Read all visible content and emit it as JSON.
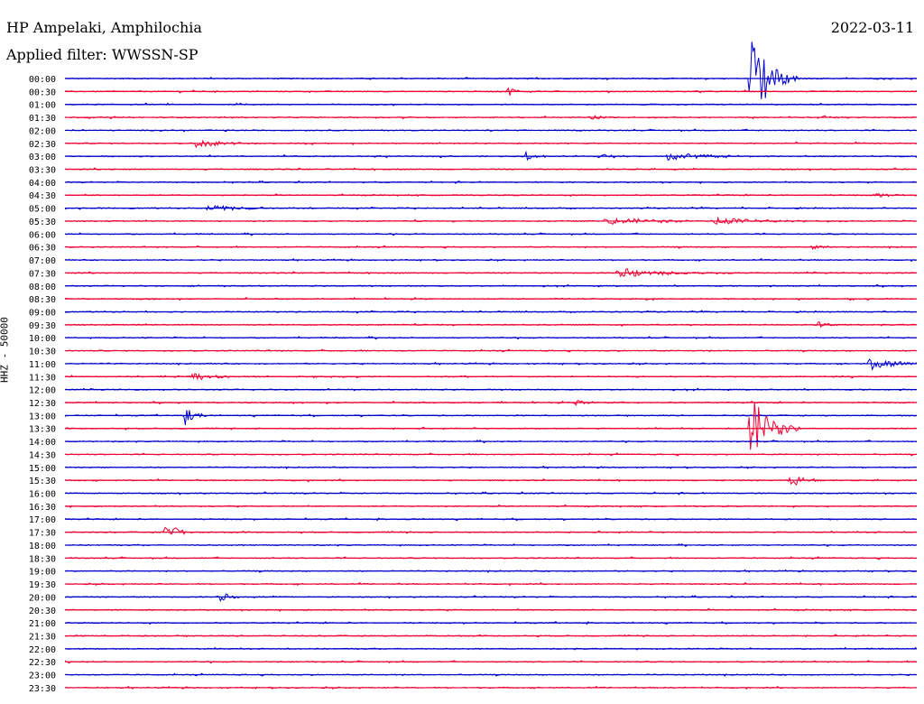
{
  "header": {
    "station": "HP Ampelaki, Amphilochia",
    "filter": "Applied filter: WWSSN-SP",
    "date": "2022-03-11"
  },
  "colors": {
    "blue": "#0000cc",
    "red": "#ee0033"
  },
  "chart_data": {
    "type": "line",
    "title": "HP Ampelaki, Amphilochia",
    "subtitle": "Applied filter: WWSSN-SP",
    "ylabel": "HHZ - 50000",
    "date": "2022-03-11",
    "row_labels": [
      "00:00",
      "00:30",
      "01:00",
      "01:30",
      "02:00",
      "02:30",
      "03:00",
      "03:30",
      "04:00",
      "04:30",
      "05:00",
      "05:30",
      "06:00",
      "06:30",
      "07:00",
      "07:30",
      "08:00",
      "08:30",
      "09:00",
      "09:30",
      "10:00",
      "10:30",
      "11:00",
      "11:30",
      "12:00",
      "12:30",
      "13:00",
      "13:30",
      "14:00",
      "14:30",
      "15:00",
      "15:30",
      "16:00",
      "16:30",
      "17:00",
      "17:30",
      "18:00",
      "18:30",
      "19:00",
      "19:30",
      "20:00",
      "20:30",
      "21:00",
      "21:30",
      "22:00",
      "22:30",
      "23:00",
      "23:30"
    ],
    "row_colors": [
      "blue",
      "red"
    ],
    "events": [
      {
        "row": 0,
        "min": 24.1,
        "amp": 56,
        "dur": 0.6
      },
      {
        "row": 1,
        "min": 15.6,
        "amp": 6,
        "dur": 0.3
      },
      {
        "row": 3,
        "min": 18.5,
        "amp": 3,
        "dur": 0.4
      },
      {
        "row": 3,
        "min": 26.5,
        "amp": 3,
        "dur": 0.4
      },
      {
        "row": 5,
        "min": 4.6,
        "amp": 5,
        "dur": 0.8
      },
      {
        "row": 6,
        "min": 16.2,
        "amp": 5,
        "dur": 0.4
      },
      {
        "row": 6,
        "min": 18.8,
        "amp": 4,
        "dur": 0.4
      },
      {
        "row": 6,
        "min": 21.2,
        "amp": 5,
        "dur": 1.2
      },
      {
        "row": 9,
        "min": 28.5,
        "amp": 3,
        "dur": 0.6
      },
      {
        "row": 10,
        "min": 5.0,
        "amp": 3,
        "dur": 1.5
      },
      {
        "row": 11,
        "min": 19.0,
        "amp": 4,
        "dur": 2.0
      },
      {
        "row": 11,
        "min": 22.9,
        "amp": 4,
        "dur": 1.5
      },
      {
        "row": 13,
        "min": 26.3,
        "amp": 3,
        "dur": 0.4
      },
      {
        "row": 15,
        "min": 19.4,
        "amp": 6,
        "dur": 1.5
      },
      {
        "row": 17,
        "min": 2.5,
        "amp": 3,
        "dur": 0.4
      },
      {
        "row": 19,
        "min": 26.5,
        "amp": 3,
        "dur": 0.6
      },
      {
        "row": 22,
        "min": 28.3,
        "amp": 7,
        "dur": 1.0
      },
      {
        "row": 23,
        "min": 4.3,
        "amp": 4,
        "dur": 1.2
      },
      {
        "row": 25,
        "min": 18.0,
        "amp": 3,
        "dur": 0.6
      },
      {
        "row": 26,
        "min": 4.2,
        "amp": 12,
        "dur": 0.3
      },
      {
        "row": 27,
        "min": 24.1,
        "amp": 44,
        "dur": 0.6
      },
      {
        "row": 31,
        "min": 25.5,
        "amp": 8,
        "dur": 0.5
      },
      {
        "row": 35,
        "min": 3.5,
        "amp": 7,
        "dur": 0.3
      },
      {
        "row": 35,
        "min": 3.8,
        "amp": 7,
        "dur": 0.3
      },
      {
        "row": 40,
        "min": 5.4,
        "amp": 8,
        "dur": 0.3
      }
    ]
  }
}
